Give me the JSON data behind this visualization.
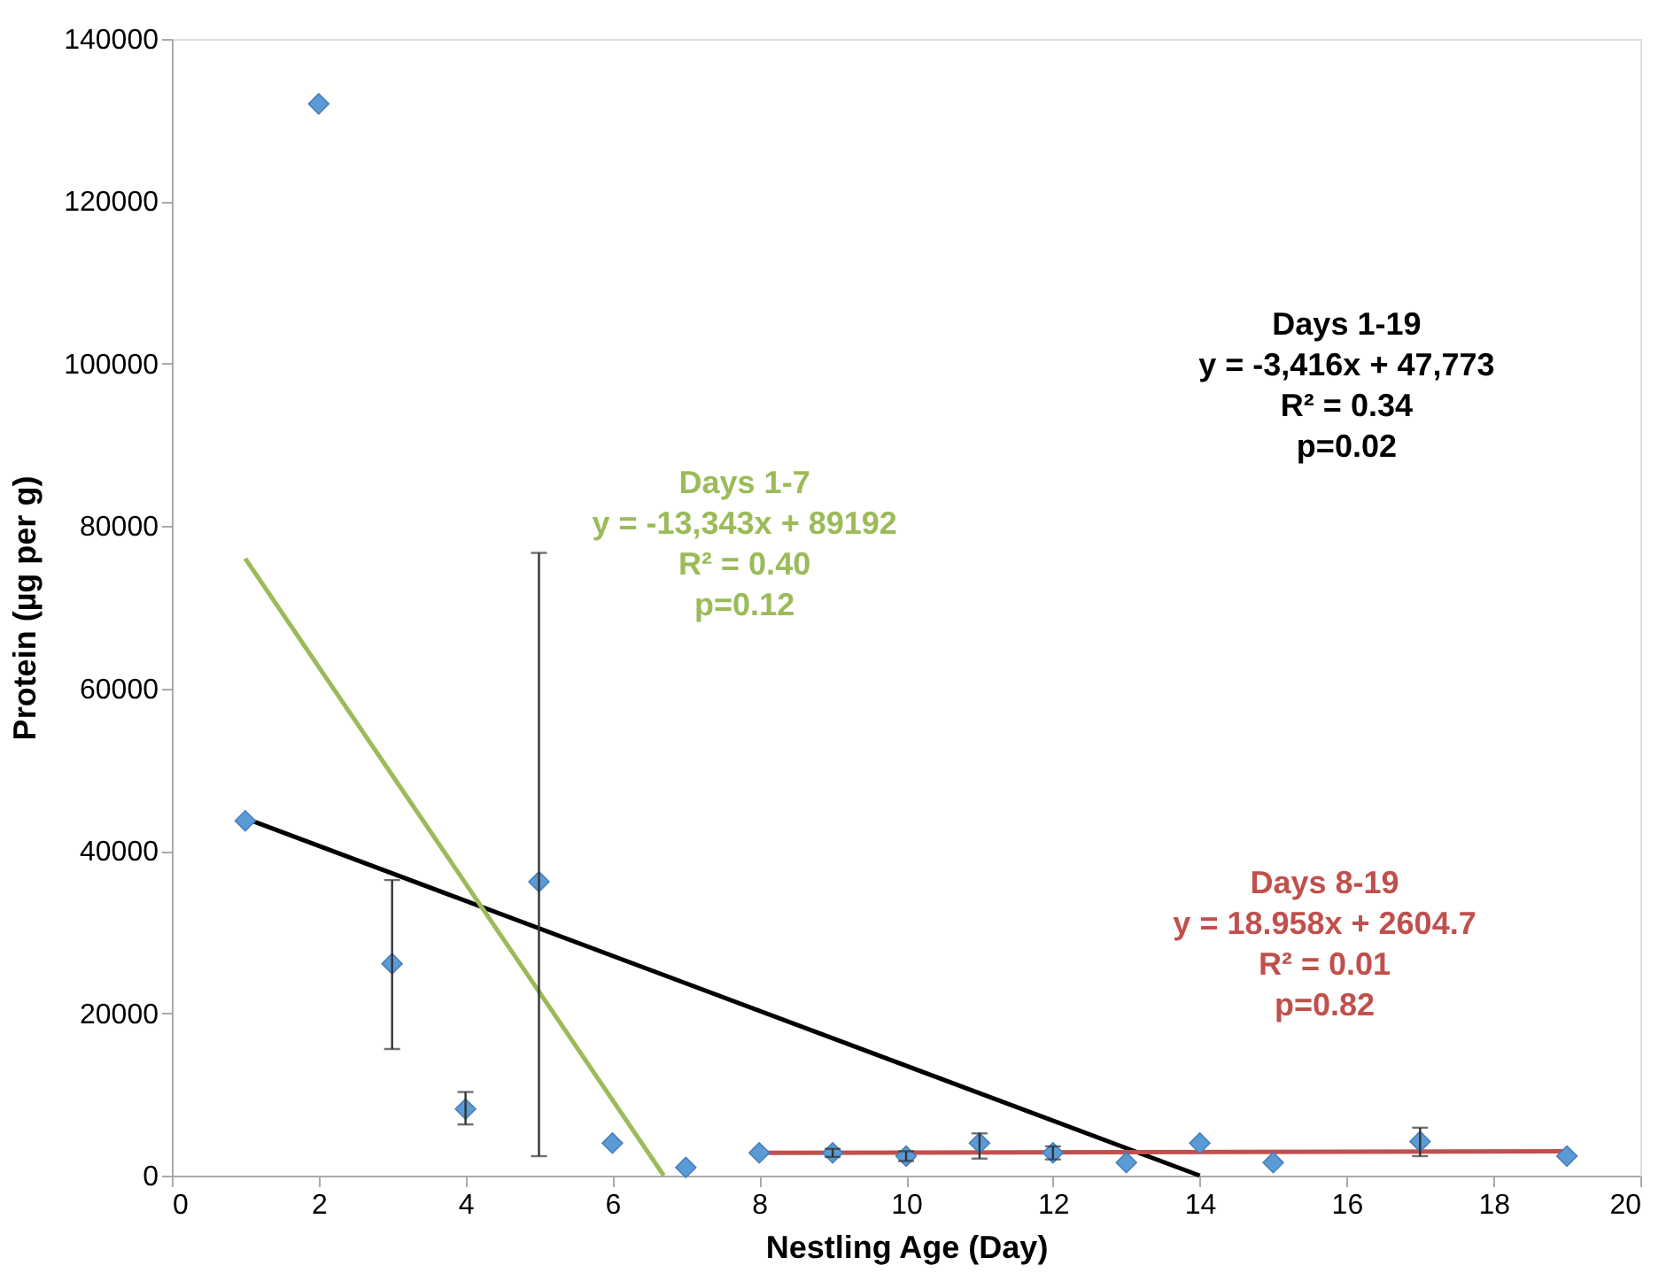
{
  "chart_data": {
    "type": "scatter",
    "xlabel": "Nestling Age (Day)",
    "ylabel": "Protein (µg per g)",
    "xlim": [
      0,
      20
    ],
    "xticks": [
      0,
      2,
      4,
      6,
      8,
      10,
      12,
      14,
      16,
      18,
      20
    ],
    "ylim": [
      0,
      140000
    ],
    "yticks": [
      0,
      20000,
      40000,
      60000,
      80000,
      100000,
      120000,
      140000
    ],
    "grid": false,
    "series": [
      {
        "marker": "diamond",
        "color": "#5b9bd5",
        "x": [
          1,
          2,
          3,
          4,
          5,
          6,
          7,
          8,
          9,
          10,
          11,
          12,
          13,
          14,
          15,
          17,
          19
        ],
        "values": [
          43700,
          132000,
          26100,
          8200,
          36200,
          4000,
          1000,
          2800,
          2800,
          2400,
          4000,
          2800,
          1600,
          4000,
          1600,
          4200,
          2400
        ],
        "errors": [
          null,
          null,
          [
            15600,
            36400
          ],
          [
            6300,
            10300
          ],
          [
            2400,
            76700
          ],
          null,
          null,
          null,
          [
            2300,
            3300
          ],
          [
            1800,
            3000
          ],
          [
            2100,
            5200
          ],
          [
            2000,
            3600
          ],
          null,
          null,
          null,
          [
            2400,
            5900
          ],
          null
        ]
      },
      {
        "type": "line",
        "color": "#000000",
        "x": [
          1,
          14
        ],
        "values": [
          44000,
          0
        ]
      },
      {
        "type": "line",
        "color": "#9bbb59",
        "x": [
          1,
          6.7
        ],
        "values": [
          76000,
          0
        ]
      },
      {
        "type": "line",
        "color": "#c0504d",
        "x": [
          8,
          19
        ],
        "values": [
          2800,
          3000
        ]
      }
    ],
    "annotations": [
      "Days 1-19\ny = -3,416x + 47,773\nR² = 0.34\np=0.02",
      "Days 1-7\ny = -13,343x + 89192\nR² = 0.40\np=0.12",
      "Days 8-19\ny = 18.958x + 2604.7\nR² = 0.01\np=0.82"
    ]
  }
}
